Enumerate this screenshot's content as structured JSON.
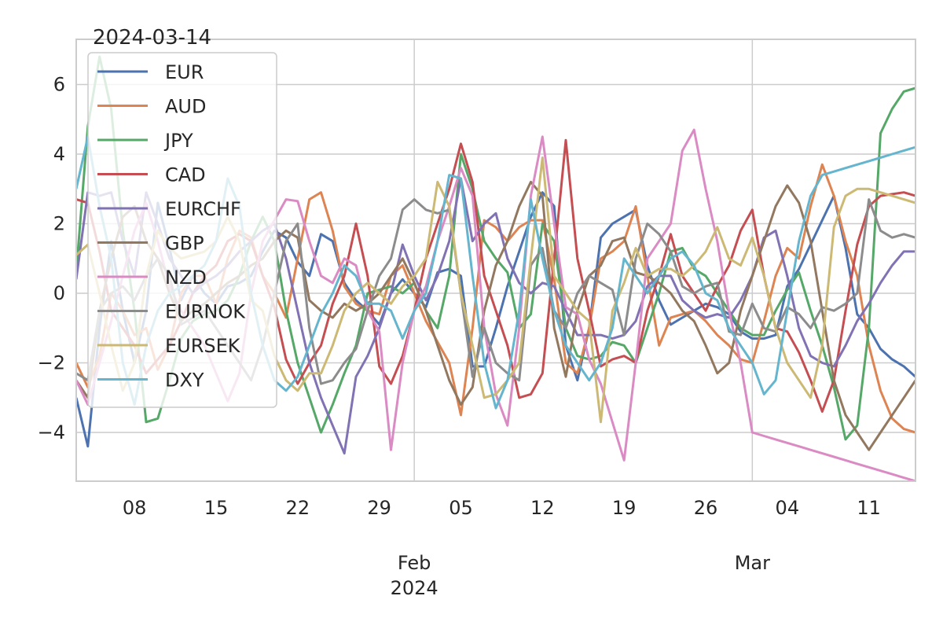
{
  "chart_data": {
    "type": "line",
    "title": "2024-03-14",
    "xlabel": "",
    "ylabel": "",
    "x_start": "2024-01-03",
    "x_end": "2024-03-15",
    "ylim": [
      -5.4,
      7.3
    ],
    "grid": true,
    "legend": "upper-left",
    "y_ticks": [
      {
        "value": 6,
        "label": "6"
      },
      {
        "value": 4,
        "label": "4"
      },
      {
        "value": 2,
        "label": "2"
      },
      {
        "value": 0,
        "label": "0"
      },
      {
        "value": -2,
        "label": "−2"
      },
      {
        "value": -4,
        "label": "−4"
      }
    ],
    "x_minor_ticks": [
      {
        "date": "2024-01-08",
        "label": "08"
      },
      {
        "date": "2024-01-15",
        "label": "15"
      },
      {
        "date": "2024-01-22",
        "label": "22"
      },
      {
        "date": "2024-01-29",
        "label": "29"
      },
      {
        "date": "2024-02-05",
        "label": "05"
      },
      {
        "date": "2024-02-12",
        "label": "12"
      },
      {
        "date": "2024-02-19",
        "label": "19"
      },
      {
        "date": "2024-02-26",
        "label": "26"
      },
      {
        "date": "2024-03-04",
        "label": "04"
      },
      {
        "date": "2024-03-11",
        "label": "11"
      }
    ],
    "x_major_ticks": [
      {
        "date": "2024-02-01",
        "label": "Feb",
        "sublabel": "2024"
      },
      {
        "date": "2024-03-01",
        "label": "Mar",
        "sublabel": ""
      }
    ],
    "dates": [
      "2024-01-03",
      "2024-01-04",
      "2024-01-05",
      "2024-01-06",
      "2024-01-07",
      "2024-01-08",
      "2024-01-09",
      "2024-01-10",
      "2024-01-11",
      "2024-01-12",
      "2024-01-13",
      "2024-01-14",
      "2024-01-15",
      "2024-01-16",
      "2024-01-17",
      "2024-01-18",
      "2024-01-19",
      "2024-01-20",
      "2024-01-21",
      "2024-01-22",
      "2024-01-23",
      "2024-01-24",
      "2024-01-25",
      "2024-01-26",
      "2024-01-27",
      "2024-01-28",
      "2024-01-29",
      "2024-01-30",
      "2024-01-31",
      "2024-02-01",
      "2024-02-02",
      "2024-02-03",
      "2024-02-04",
      "2024-02-05",
      "2024-02-06",
      "2024-02-07",
      "2024-02-08",
      "2024-02-09",
      "2024-02-10",
      "2024-02-11",
      "2024-02-12",
      "2024-02-13",
      "2024-02-14",
      "2024-02-15",
      "2024-02-16",
      "2024-02-17",
      "2024-02-18",
      "2024-02-19",
      "2024-02-20",
      "2024-02-21",
      "2024-02-22",
      "2024-02-23",
      "2024-02-24",
      "2024-02-25",
      "2024-02-26",
      "2024-02-27",
      "2024-02-28",
      "2024-02-29",
      "2024-03-01",
      "2024-03-02",
      "2024-03-03",
      "2024-03-04",
      "2024-03-05",
      "2024-03-06",
      "2024-03-07",
      "2024-03-08",
      "2024-03-09",
      "2024-03-10",
      "2024-03-11",
      "2024-03-12",
      "2024-03-13",
      "2024-03-14",
      "2024-03-15"
    ],
    "series": [
      {
        "name": "EUR",
        "color": "#4c72b0",
        "values": [
          -3.0,
          -4.4,
          -1.0,
          1.5,
          -0.5,
          -2.0,
          -0.5,
          2.6,
          1.3,
          -0.2,
          0.5,
          0.0,
          -0.3,
          0.2,
          0.3,
          0.5,
          1.2,
          1.8,
          1.6,
          0.9,
          0.5,
          1.7,
          1.5,
          0.3,
          -0.2,
          -0.5,
          -0.9,
          0.0,
          0.4,
          0.0,
          -0.4,
          0.6,
          0.7,
          0.5,
          -2.1,
          -2.1,
          -1.0,
          0.2,
          1.2,
          2.2,
          2.9,
          2.5,
          -1.5,
          -2.5,
          -1.0,
          1.6,
          2.0,
          2.2,
          2.4,
          0.8,
          -0.2,
          -0.9,
          -0.7,
          -0.5,
          -0.3,
          -0.4,
          -0.6,
          -1.1,
          -1.3,
          -1.3,
          -1.2,
          0.2,
          0.7,
          1.4,
          2.1,
          2.8,
          1.3,
          -0.6,
          -1.0,
          -1.6,
          -1.9,
          -2.1,
          -2.4
        ]
      },
      {
        "name": "AUD",
        "color": "#dd8452",
        "values": [
          -2.0,
          -2.7,
          -1.8,
          0.0,
          -0.5,
          -1.2,
          -1.0,
          -2.2,
          -1.5,
          0.0,
          0.5,
          0.5,
          -0.3,
          1.0,
          1.8,
          1.6,
          0.5,
          0.0,
          -0.7,
          1.0,
          2.7,
          2.9,
          1.8,
          0.2,
          -0.3,
          -0.5,
          -0.6,
          0.5,
          0.8,
          0.0,
          -0.8,
          -1.4,
          -2.0,
          -3.5,
          -1.0,
          2.1,
          1.9,
          1.5,
          1.9,
          2.1,
          2.1,
          0.4,
          -2.0,
          -2.3,
          -1.0,
          1.0,
          1.2,
          1.5,
          2.5,
          0.5,
          -1.5,
          -0.7,
          -0.6,
          -0.5,
          -0.8,
          -1.2,
          -1.5,
          -1.9,
          -2.0,
          -0.8,
          0.5,
          1.3,
          1.0,
          2.5,
          3.7,
          2.8,
          1.5,
          0.5,
          -1.5,
          -2.8,
          -3.6,
          -3.9,
          -4.0
        ]
      },
      {
        "name": "JPY",
        "color": "#55a868",
        "values": [
          0.6,
          4.8,
          6.8,
          5.3,
          1.8,
          -0.5,
          -3.7,
          -3.6,
          -2.5,
          -1.3,
          -0.8,
          -0.6,
          -0.5,
          -0.2,
          0.5,
          1.5,
          2.2,
          1.5,
          -0.5,
          -2.0,
          -3.0,
          -4.0,
          -3.2,
          -2.3,
          -1.5,
          0.0,
          0.1,
          0.2,
          0.0,
          0.3,
          -0.5,
          -1.0,
          0.5,
          4.0,
          3.0,
          1.5,
          1.0,
          0.6,
          -1.0,
          -0.6,
          2.0,
          1.5,
          -1.0,
          -1.8,
          -1.9,
          -1.8,
          -1.4,
          -1.5,
          -2.0,
          -1.0,
          0.0,
          1.2,
          1.3,
          0.7,
          0.5,
          0.0,
          -0.5,
          -1.0,
          -1.2,
          -1.2,
          -0.5,
          0.1,
          0.6,
          -0.5,
          -1.5,
          -2.7,
          -4.2,
          -3.8,
          -1.0,
          4.6,
          5.3,
          5.8,
          5.9
        ]
      },
      {
        "name": "CAD",
        "color": "#c44e52",
        "values": [
          2.7,
          2.6,
          1.2,
          -0.5,
          -1.0,
          -1.5,
          -2.3,
          -1.9,
          -1.5,
          -0.8,
          0.0,
          0.5,
          0.8,
          1.5,
          1.7,
          1.5,
          0.5,
          -0.4,
          -1.9,
          -2.6,
          -2.0,
          -1.5,
          -0.3,
          0.5,
          2.0,
          0.5,
          -2.1,
          -2.6,
          -1.8,
          -0.5,
          1.0,
          2.0,
          3.0,
          4.3,
          3.2,
          0.5,
          -0.5,
          -1.5,
          -3.0,
          -2.9,
          -2.3,
          1.0,
          4.4,
          1.0,
          -0.5,
          -2.1,
          -1.9,
          -1.8,
          -2.0,
          -0.5,
          0.5,
          1.7,
          0.5,
          0.0,
          -0.5,
          0.2,
          0.8,
          1.8,
          2.4,
          0.5,
          -1.0,
          -1.1,
          -1.7,
          -2.5,
          -3.4,
          -2.5,
          -0.5,
          1.4,
          2.5,
          2.8,
          2.85,
          2.9,
          2.8
        ]
      },
      {
        "name": "EURCHF",
        "color": "#8172b3",
        "values": [
          0.4,
          2.9,
          2.8,
          2.9,
          1.5,
          0.5,
          2.9,
          2.0,
          1.0,
          0.5,
          0.0,
          0.3,
          0.5,
          0.8,
          1.2,
          1.5,
          1.8,
          2.0,
          1.0,
          -0.5,
          -2.0,
          -3.0,
          -3.8,
          -4.6,
          -2.4,
          -1.8,
          -1.0,
          0.0,
          1.4,
          0.5,
          -0.2,
          0.5,
          1.5,
          3.3,
          1.5,
          2.0,
          2.3,
          1.0,
          0.3,
          0.0,
          0.3,
          0.2,
          -0.5,
          -1.2,
          -1.2,
          -1.2,
          -1.3,
          -1.2,
          -0.8,
          0.2,
          0.5,
          0.5,
          -0.2,
          -0.5,
          -0.7,
          -0.6,
          -0.7,
          -0.2,
          0.5,
          1.6,
          1.8,
          0.5,
          -1.0,
          -1.8,
          -2.0,
          -2.1,
          -1.5,
          -0.8,
          -0.3,
          0.3,
          0.8,
          1.2,
          1.2
        ]
      },
      {
        "name": "GBP",
        "color": "#937860",
        "values": [
          -2.5,
          -3.0,
          -0.5,
          1.0,
          2.2,
          2.5,
          1.5,
          1.0,
          0.0,
          -0.8,
          -0.5,
          -0.3,
          0.0,
          0.3,
          0.5,
          0.8,
          1.0,
          1.5,
          1.8,
          1.6,
          -0.2,
          -0.5,
          -0.7,
          -0.3,
          -0.5,
          -0.3,
          0.0,
          0.5,
          1.0,
          0.3,
          -0.5,
          -1.5,
          -2.5,
          -3.2,
          -2.7,
          -0.5,
          0.8,
          1.5,
          2.5,
          3.2,
          2.8,
          -1.0,
          -2.4,
          -0.5,
          0.5,
          0.8,
          1.5,
          1.6,
          0.6,
          0.5,
          0.3,
          0.0,
          -0.5,
          -0.8,
          -1.5,
          -2.3,
          -2.0,
          -0.5,
          0.5,
          1.5,
          2.5,
          3.1,
          2.6,
          1.5,
          -0.5,
          -2.5,
          -3.5,
          -4.0,
          -4.5,
          -4.0,
          -3.5,
          -3.0,
          -2.5
        ]
      },
      {
        "name": "NZD",
        "color": "#da8bc3",
        "values": [
          -2.5,
          -3.2,
          -2.0,
          -0.8,
          0.5,
          1.8,
          2.6,
          1.5,
          0.2,
          -0.5,
          -1.0,
          -1.5,
          -2.3,
          -3.1,
          -2.3,
          0.0,
          1.5,
          2.1,
          2.7,
          2.65,
          1.5,
          0.5,
          0.3,
          1.0,
          0.8,
          -0.5,
          -1.1,
          -4.5,
          -2.0,
          -0.5,
          0.2,
          1.5,
          2.5,
          3.6,
          2.8,
          -1.0,
          -2.9,
          -3.8,
          -1.0,
          2.8,
          4.5,
          2.0,
          -0.4,
          -0.6,
          -1.9,
          -2.6,
          -3.7,
          -4.8,
          -2.0,
          1.0,
          1.5,
          2.0,
          4.1,
          4.7,
          3.0,
          1.5,
          -0.5,
          -2.0,
          -4.0,
          -4.1,
          -4.2,
          -4.3,
          -4.4,
          -4.5,
          -4.6,
          -4.7,
          -4.8,
          -4.9,
          -5.0,
          -5.1,
          -5.2,
          -5.3,
          -5.4
        ]
      },
      {
        "name": "EURNOK",
        "color": "#8c8c8c",
        "values": [
          -2.3,
          -2.5,
          -0.5,
          0.0,
          0.2,
          -0.2,
          0.5,
          1.0,
          0.5,
          -0.9,
          -0.7,
          -0.5,
          -1.0,
          -1.5,
          -2.0,
          -2.5,
          -1.5,
          0.0,
          1.5,
          2.0,
          -1.0,
          -2.6,
          -2.5,
          -2.0,
          -1.6,
          -0.5,
          0.5,
          1.0,
          2.4,
          2.7,
          2.4,
          2.3,
          2.4,
          0.0,
          -2.4,
          -1.0,
          -2.0,
          -2.3,
          -2.5,
          0.8,
          1.3,
          -0.5,
          -1.0,
          0.0,
          0.5,
          0.3,
          0.1,
          -1.2,
          1.0,
          2.0,
          1.7,
          1.2,
          0.2,
          0.0,
          0.2,
          0.3,
          -1.1,
          -1.2,
          -0.3,
          -1.0,
          -1.1,
          -0.4,
          -0.6,
          -1.0,
          -0.4,
          -0.5,
          -0.3,
          0.0,
          2.7,
          1.8,
          1.6,
          1.7,
          1.6
        ]
      },
      {
        "name": "EURSEK",
        "color": "#ccb974",
        "values": [
          1.1,
          1.4,
          0.0,
          -1.5,
          -2.8,
          -2.0,
          0.5,
          1.8,
          1.3,
          1.0,
          1.1,
          1.2,
          1.5,
          2.2,
          1.5,
          -0.2,
          -0.5,
          -1.8,
          -2.5,
          -2.8,
          -2.3,
          -2.3,
          -1.5,
          -0.5,
          0.0,
          0.3,
          0.0,
          -0.3,
          0.2,
          0.5,
          1.0,
          3.2,
          2.5,
          0.0,
          -1.5,
          -3.0,
          -2.9,
          -2.5,
          -2.0,
          1.0,
          3.9,
          0.5,
          0.0,
          -0.5,
          -0.8,
          -3.7,
          -0.5,
          0.3,
          1.3,
          0.5,
          0.7,
          0.7,
          0.5,
          0.8,
          1.2,
          1.9,
          1.0,
          0.8,
          1.6,
          0.5,
          -1.0,
          -2.0,
          -2.5,
          -3.0,
          -1.5,
          1.9,
          2.8,
          3.0,
          3.0,
          2.9,
          2.8,
          2.7,
          2.6
        ]
      },
      {
        "name": "DXY",
        "color": "#64b5cd",
        "values": [
          3.0,
          4.5,
          2.5,
          1.0,
          -2.0,
          -3.2,
          -1.5,
          -0.5,
          0.0,
          0.2,
          0.5,
          0.8,
          1.5,
          3.3,
          2.5,
          0.0,
          -1.5,
          -2.5,
          -2.8,
          -2.4,
          -1.5,
          -0.6,
          0.0,
          0.8,
          0.5,
          -0.3,
          -0.3,
          -0.5,
          -1.3,
          -0.5,
          0.0,
          1.5,
          3.4,
          3.3,
          0.5,
          -2.0,
          -3.3,
          -2.5,
          -0.5,
          2.7,
          1.0,
          -0.5,
          -1.5,
          -2.0,
          -2.5,
          -2.0,
          -1.0,
          1.0,
          0.5,
          0.0,
          0.5,
          1.0,
          1.2,
          0.8,
          0.0,
          -0.2,
          -1.0,
          -1.5,
          -2.0,
          -2.9,
          -2.5,
          -0.5,
          1.5,
          2.8,
          3.4,
          3.5,
          3.6,
          3.7,
          3.8,
          3.9,
          4.0,
          4.1,
          4.2
        ]
      }
    ]
  }
}
